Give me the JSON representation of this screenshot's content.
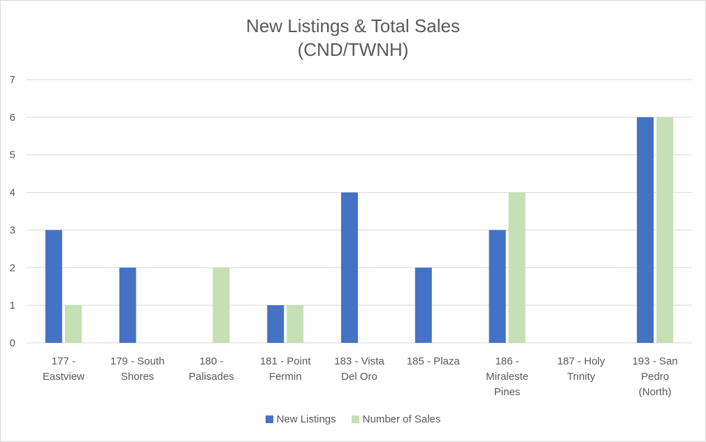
{
  "chart_data": {
    "type": "bar",
    "title_lines": [
      "New Listings & Total Sales",
      "(CND/TWNH)"
    ],
    "categories": [
      [
        "177 -",
        "Eastview"
      ],
      [
        "179 - South",
        "Shores"
      ],
      [
        "180 -",
        "Palisades"
      ],
      [
        "181 - Point",
        "Fermin"
      ],
      [
        "183 - Vista",
        "Del Oro"
      ],
      [
        "185 - Plaza"
      ],
      [
        "186 -",
        "Miraleste",
        "Pines"
      ],
      [
        "187 - Holy",
        "Trinity"
      ],
      [
        "193 - San",
        "Pedro",
        "(North)"
      ]
    ],
    "series": [
      {
        "name": "New Listings",
        "color": "#4472c4",
        "values": [
          3,
          2,
          0,
          1,
          4,
          2,
          3,
          0,
          6
        ]
      },
      {
        "name": "Number of Sales",
        "color": "#c5e0b4",
        "values": [
          1,
          0,
          2,
          1,
          0,
          0,
          4,
          0,
          6
        ]
      }
    ],
    "ylim": [
      0,
      7
    ],
    "yticks": [
      0,
      1,
      2,
      3,
      4,
      5,
      6,
      7
    ],
    "grid": true,
    "legend_position": "bottom"
  }
}
